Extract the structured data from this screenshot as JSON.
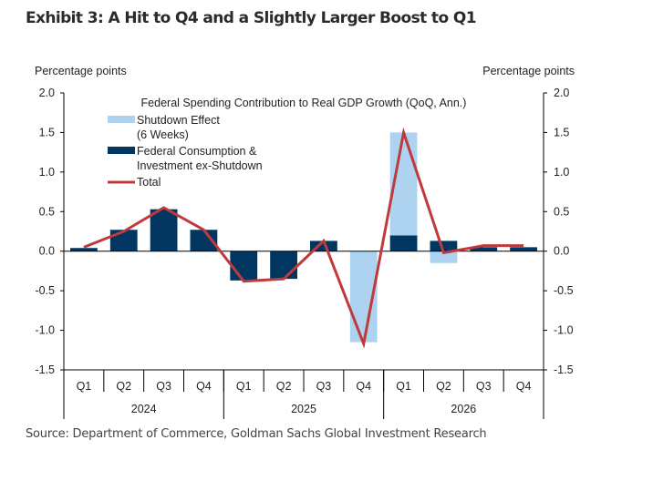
{
  "title": "Exhibit 3: A Hit to Q4 and a Slightly Larger Boost to Q1",
  "source": "Source: Department of Commerce, Goldman Sachs Global Investment Research",
  "chart_data": {
    "type": "bar",
    "title": "Federal Spending Contribution to Real GDP Growth (QoQ, Ann.)",
    "ylabel_left": "Percentage points",
    "ylabel_right": "Percentage points",
    "ylim": [
      -1.5,
      2.0
    ],
    "yticks": [
      "2.0",
      "1.5",
      "1.0",
      "0.5",
      "0.0",
      "-0.5",
      "-1.0",
      "-1.5"
    ],
    "categories": [
      "Q1",
      "Q2",
      "Q3",
      "Q4",
      "Q1",
      "Q2",
      "Q3",
      "Q4",
      "Q1",
      "Q2",
      "Q3",
      "Q4"
    ],
    "years": [
      {
        "label": "2024",
        "span": 4
      },
      {
        "label": "2025",
        "span": 4
      },
      {
        "label": "2026",
        "span": 4
      }
    ],
    "legend_position": "top-left",
    "series": [
      {
        "name": "Shutdown Effect\n(6 Weeks)",
        "type": "bar",
        "color": "#aed3f0",
        "values": [
          0,
          0,
          0,
          0,
          0,
          0,
          0,
          -1.15,
          1.3,
          -0.15,
          0,
          0
        ]
      },
      {
        "name": "Federal Consumption &\nInvestment ex-Shutdown",
        "type": "bar",
        "color": "#003660",
        "values": [
          0.04,
          0.27,
          0.53,
          0.27,
          -0.37,
          -0.35,
          0.13,
          0,
          0.2,
          0.13,
          0.05,
          0.05
        ]
      },
      {
        "name": "Total",
        "type": "line",
        "color": "#c0393b",
        "values": [
          0.05,
          0.25,
          0.55,
          0.27,
          -0.38,
          -0.35,
          0.13,
          -1.17,
          1.5,
          -0.02,
          0.07,
          0.07
        ]
      }
    ]
  }
}
